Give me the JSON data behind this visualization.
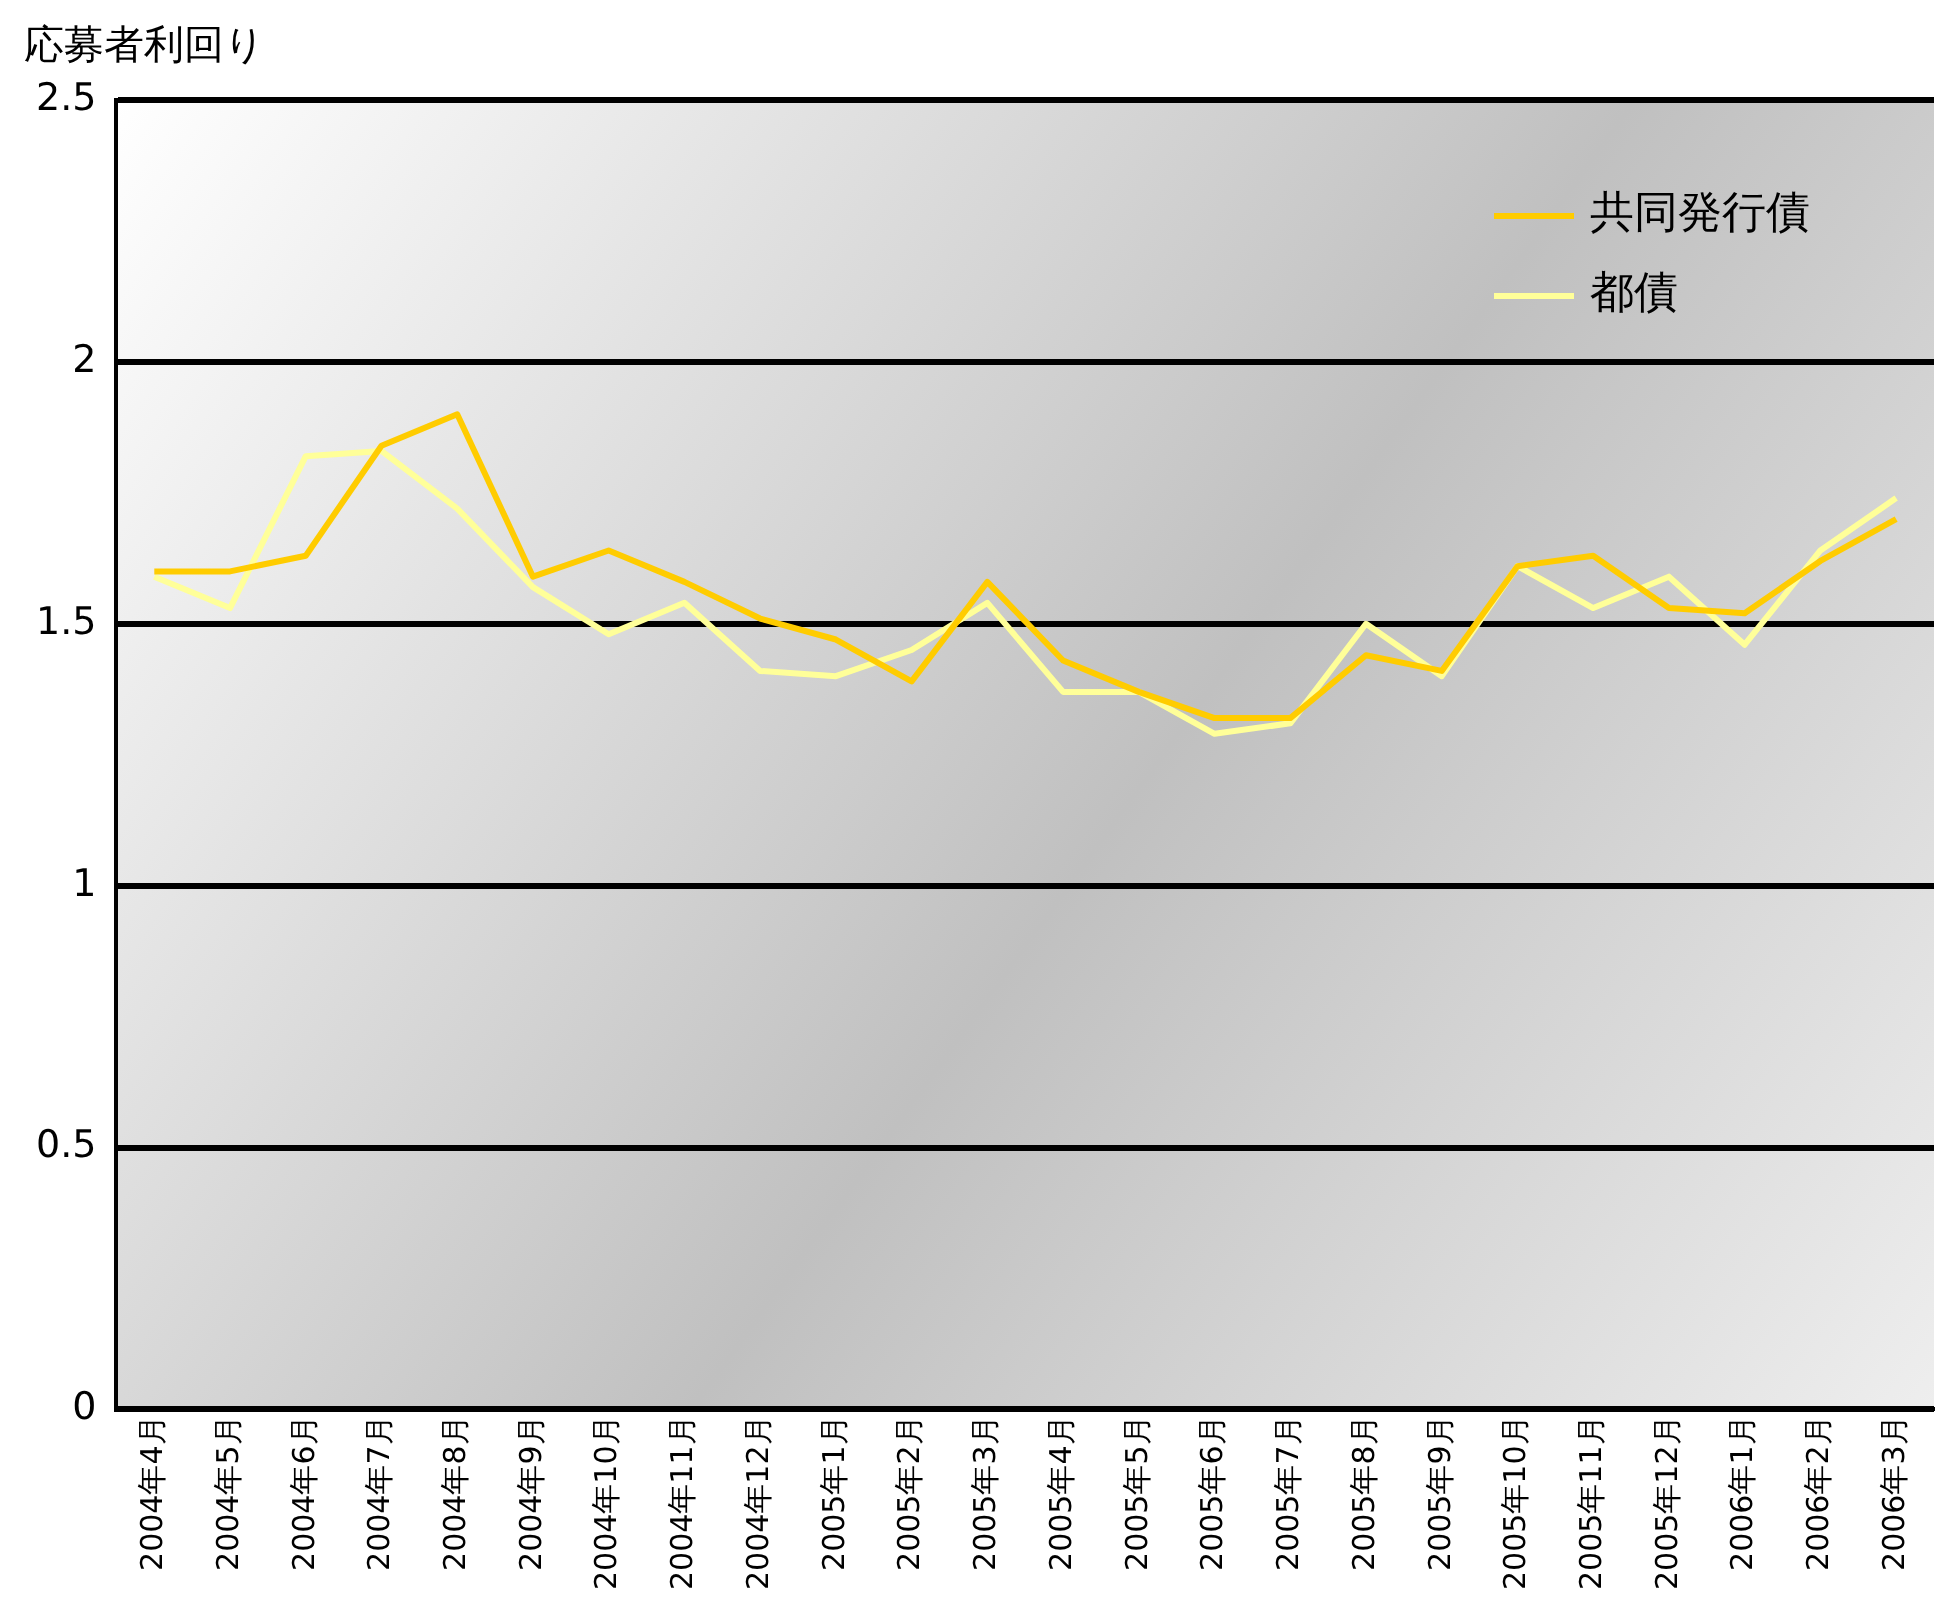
{
  "chart_data": {
    "type": "line",
    "ylabel": "応募者利回り",
    "categories": [
      "2004年4月",
      "2004年5月",
      "2004年6月",
      "2004年7月",
      "2004年8月",
      "2004年9月",
      "2004年10月",
      "2004年11月",
      "2004年12月",
      "2005年1月",
      "2005年2月",
      "2005年3月",
      "2005年4月",
      "2005年5月",
      "2005年6月",
      "2005年7月",
      "2005年8月",
      "2005年9月",
      "2005年10月",
      "2005年11月",
      "2005年12月",
      "2006年1月",
      "2006年2月",
      "2006年3月"
    ],
    "series": [
      {
        "name": "共同発行債",
        "color": "#ffcc00",
        "values": [
          1.6,
          1.6,
          1.63,
          1.84,
          1.9,
          1.59,
          1.64,
          1.58,
          1.51,
          1.47,
          1.39,
          1.58,
          1.43,
          1.37,
          1.32,
          1.32,
          1.44,
          1.41,
          1.61,
          1.63,
          1.53,
          1.52,
          1.62,
          1.7
        ]
      },
      {
        "name": "都債",
        "color": "#ffff99",
        "values": [
          1.59,
          1.53,
          1.82,
          1.83,
          1.72,
          1.57,
          1.48,
          1.54,
          1.41,
          1.4,
          1.45,
          1.54,
          1.37,
          1.37,
          1.29,
          1.31,
          1.5,
          1.4,
          1.61,
          1.53,
          1.59,
          1.46,
          1.64,
          1.74
        ]
      }
    ],
    "ylim": [
      0,
      2.5
    ],
    "yticks": [
      0,
      0.5,
      1,
      1.5,
      2,
      2.5
    ],
    "grid": "y",
    "legend": "top right",
    "marker": "none",
    "line_style": "solid"
  }
}
